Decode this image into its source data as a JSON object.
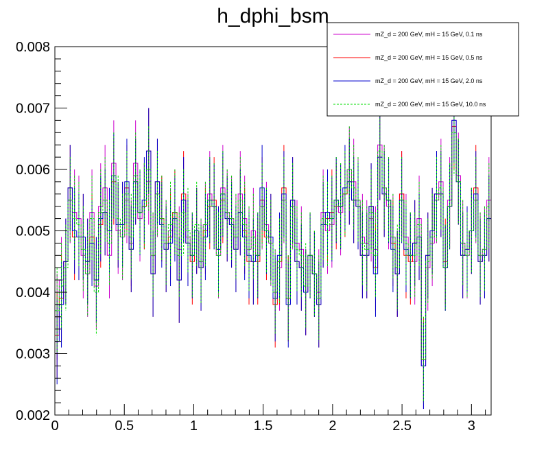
{
  "chart_data": {
    "type": "line",
    "title": "h_dphi_bsm",
    "xlabel": "",
    "ylabel": "",
    "xlim": [
      0,
      3.1416
    ],
    "ylim": [
      0.002,
      0.008
    ],
    "x_ticks": [
      0,
      0.5,
      1,
      1.5,
      2,
      2.5,
      3
    ],
    "x_tick_labels": [
      "0",
      "0.5",
      "1",
      "1.5",
      "2",
      "2.5",
      "3"
    ],
    "y_ticks": [
      0.002,
      0.003,
      0.004,
      0.005,
      0.006,
      0.007,
      0.008
    ],
    "y_tick_labels": [
      "0.002",
      "0.003",
      "0.004",
      "0.005",
      "0.006",
      "0.007",
      "0.008"
    ],
    "grid": false,
    "legend_position": "top-right",
    "n_bins": 100,
    "series": [
      {
        "name": "mZ_d = 200 GeV, mH = 15 GeV, 0.1 ns",
        "color": "#cc00cc",
        "style": "solid",
        "values": [
          0.0036,
          0.0042,
          0.0045,
          0.0055,
          0.0053,
          0.0052,
          0.0046,
          0.0043,
          0.0053,
          0.0041,
          0.0054,
          0.0057,
          0.0046,
          0.0061,
          0.005,
          0.0049,
          0.0055,
          0.0048,
          0.0061,
          0.0052,
          0.0054,
          0.0058,
          0.0046,
          0.0056,
          0.0052,
          0.0048,
          0.005,
          0.0053,
          0.0047,
          0.0055,
          0.0049,
          0.0046,
          0.005,
          0.0045,
          0.0051,
          0.0056,
          0.0054,
          0.0046,
          0.0057,
          0.0053,
          0.0052,
          0.0049,
          0.0056,
          0.0052,
          0.0047,
          0.005,
          0.0046,
          0.0054,
          0.0051,
          0.0048,
          0.004,
          0.0044,
          0.0055,
          0.0039,
          0.0054,
          0.0048,
          0.0047,
          0.004,
          0.0046,
          0.0043,
          0.004,
          0.0053,
          0.005,
          0.0051,
          0.0055,
          0.0053,
          0.0056,
          0.006,
          0.0058,
          0.0055,
          0.0049,
          0.0048,
          0.0052,
          0.0047,
          0.0064,
          0.0057,
          0.0054,
          0.0049,
          0.0043,
          0.0056,
          0.0049,
          0.0046,
          0.0045,
          0.0052,
          0.0028,
          0.0044,
          0.0048,
          0.0055,
          0.0058,
          0.0044,
          0.0055,
          0.0068,
          0.0059,
          0.0048,
          0.0046,
          0.005,
          0.0055,
          0.0046,
          0.0047,
          0.0055
        ],
        "error": 0.0007
      },
      {
        "name": "mZ_d = 200 GeV, mH = 15 GeV, 0.5 ns",
        "color": "#ff0000",
        "style": "solid",
        "values": [
          0.0033,
          0.0039,
          0.0045,
          0.0057,
          0.0049,
          0.0049,
          0.0049,
          0.0045,
          0.0049,
          0.0042,
          0.0051,
          0.0053,
          0.005,
          0.0058,
          0.0051,
          0.0051,
          0.0057,
          0.0047,
          0.0058,
          0.0053,
          0.0054,
          0.0063,
          0.0043,
          0.0058,
          0.0052,
          0.0047,
          0.0049,
          0.0053,
          0.0042,
          0.0056,
          0.0048,
          0.0045,
          0.005,
          0.0044,
          0.005,
          0.0054,
          0.0055,
          0.0047,
          0.0055,
          0.0052,
          0.0051,
          0.0047,
          0.0053,
          0.005,
          0.0045,
          0.0045,
          0.0045,
          0.0055,
          0.0049,
          0.0049,
          0.0038,
          0.0045,
          0.0057,
          0.0039,
          0.0055,
          0.0045,
          0.0044,
          0.004,
          0.0046,
          0.0043,
          0.0038,
          0.0051,
          0.0052,
          0.0053,
          0.0054,
          0.0054,
          0.0056,
          0.0058,
          0.0055,
          0.0054,
          0.0046,
          0.0046,
          0.0054,
          0.0044,
          0.0062,
          0.0056,
          0.0055,
          0.0048,
          0.0043,
          0.0056,
          0.0046,
          0.0045,
          0.0048,
          0.0049,
          0.0029,
          0.0046,
          0.005,
          0.0056,
          0.0056,
          0.0045,
          0.0054,
          0.0067,
          0.0058,
          0.0046,
          0.0047,
          0.005,
          0.0057,
          0.0045,
          0.0046,
          0.0052
        ],
        "error": 0.0007
      },
      {
        "name": "mZ_d = 200 GeV, mH = 15 GeV, 2.0 ns",
        "color": "#0000cc",
        "style": "solid",
        "values": [
          0.0032,
          0.0038,
          0.0045,
          0.0057,
          0.005,
          0.0049,
          0.0049,
          0.0045,
          0.0048,
          0.0042,
          0.0052,
          0.0053,
          0.005,
          0.0059,
          0.0051,
          0.0051,
          0.0058,
          0.0047,
          0.0058,
          0.0053,
          0.0055,
          0.0063,
          0.0043,
          0.0058,
          0.0051,
          0.0047,
          0.0048,
          0.0052,
          0.0042,
          0.0055,
          0.0048,
          0.0046,
          0.005,
          0.0044,
          0.0049,
          0.0055,
          0.0054,
          0.0047,
          0.0056,
          0.0052,
          0.0051,
          0.0047,
          0.0053,
          0.0049,
          0.0046,
          0.0045,
          0.0046,
          0.0057,
          0.005,
          0.0049,
          0.0039,
          0.0046,
          0.0056,
          0.0038,
          0.0055,
          0.0045,
          0.0044,
          0.004,
          0.0046,
          0.0043,
          0.0038,
          0.0051,
          0.0053,
          0.0052,
          0.0055,
          0.0054,
          0.0057,
          0.0058,
          0.0055,
          0.0054,
          0.0046,
          0.0046,
          0.0054,
          0.0043,
          0.0062,
          0.0056,
          0.0055,
          0.0047,
          0.0043,
          0.0055,
          0.0047,
          0.0046,
          0.0048,
          0.0049,
          0.0028,
          0.0046,
          0.005,
          0.0056,
          0.0056,
          0.0044,
          0.0054,
          0.0068,
          0.0058,
          0.0046,
          0.0047,
          0.005,
          0.0056,
          0.0045,
          0.0046,
          0.0052
        ],
        "error": 0.0007
      },
      {
        "name": "mZ_d = 200 GeV, mH = 15 GeV, 10.0 ns",
        "color": "#00dd00",
        "style": "dashed",
        "values": [
          0.0037,
          0.0041,
          0.0044,
          0.0055,
          0.0052,
          0.0051,
          0.0047,
          0.0043,
          0.0052,
          0.004,
          0.0053,
          0.0055,
          0.0048,
          0.0059,
          0.0052,
          0.0049,
          0.0056,
          0.0049,
          0.0059,
          0.0053,
          0.0054,
          0.006,
          0.0046,
          0.0056,
          0.0052,
          0.0048,
          0.0051,
          0.0053,
          0.0046,
          0.0053,
          0.005,
          0.0046,
          0.0051,
          0.0045,
          0.0051,
          0.0055,
          0.0054,
          0.0046,
          0.0056,
          0.0053,
          0.0052,
          0.0049,
          0.0055,
          0.0051,
          0.0047,
          0.0049,
          0.0046,
          0.0054,
          0.005,
          0.0048,
          0.004,
          0.0045,
          0.0055,
          0.0039,
          0.0054,
          0.0047,
          0.0046,
          0.0041,
          0.0046,
          0.0043,
          0.0039,
          0.0052,
          0.0051,
          0.0052,
          0.0055,
          0.0054,
          0.0056,
          0.006,
          0.0057,
          0.0055,
          0.0048,
          0.0047,
          0.0053,
          0.0046,
          0.0063,
          0.0057,
          0.0055,
          0.0049,
          0.0044,
          0.0055,
          0.0048,
          0.0046,
          0.0046,
          0.0051,
          0.0029,
          0.0045,
          0.0049,
          0.0055,
          0.0057,
          0.0044,
          0.0054,
          0.0066,
          0.0058,
          0.0048,
          0.0046,
          0.005,
          0.0055,
          0.0046,
          0.0047,
          0.0054
        ],
        "error": 0.0007
      }
    ]
  }
}
